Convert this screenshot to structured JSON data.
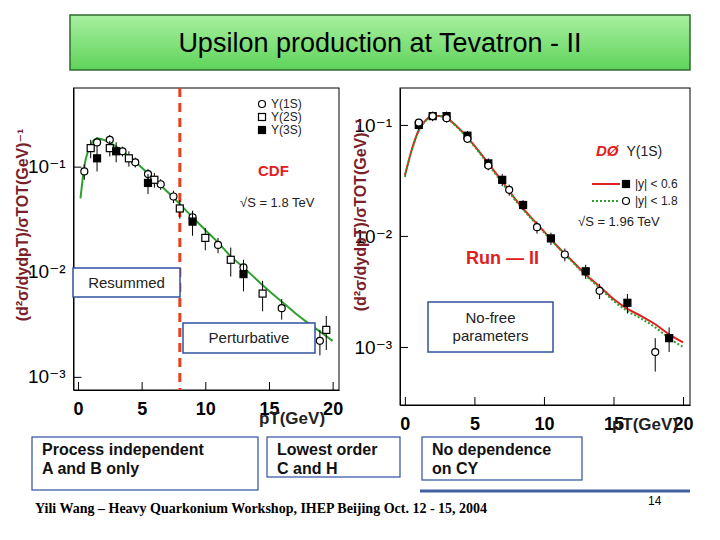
{
  "title": "Upsilon production at Tevatron - II",
  "chart_data": [
    {
      "type": "scatter",
      "log": "y",
      "xlabel": "pT(GeV)",
      "ylabel": "(d²σ/dydpT)/σTOT(GeV)⁻¹",
      "xlim": [
        -0.35,
        20.5
      ],
      "ylim": [
        0.00075,
        0.56
      ],
      "xticks": [
        0,
        5,
        10,
        15,
        20
      ],
      "yticks": [
        {
          "value": 0.001,
          "label": "10⁻³"
        },
        {
          "value": 0.01,
          "label": "10⁻²"
        },
        {
          "value": 0.1,
          "label": "10⁻¹"
        }
      ],
      "experiment_label": "CDF",
      "energy_label": "√S = 1.8 TeV",
      "separation_x": 8,
      "boxes": [
        [
          "Resummed"
        ],
        [
          "Perturbative"
        ]
      ],
      "curves": [
        {
          "color": "#2ca02c",
          "line_style": "solid",
          "x": [
            0.2,
            0.5,
            1,
            1.5,
            2,
            3,
            4,
            5,
            6,
            7,
            8,
            9,
            10,
            11,
            12,
            13,
            14,
            15,
            16,
            17,
            18,
            19,
            20
          ],
          "values": [
            0.05,
            0.1,
            0.16,
            0.185,
            0.18,
            0.155,
            0.125,
            0.098,
            0.075,
            0.058,
            0.044,
            0.033,
            0.025,
            0.019,
            0.014,
            0.011,
            0.0085,
            0.0066,
            0.0052,
            0.0041,
            0.0033,
            0.0027,
            0.0022
          ]
        }
      ],
      "series": [
        {
          "name": "Υ(1S)",
          "color": "#000000",
          "marker": "circle-open",
          "x": [
            0.5,
            1.5,
            2.5,
            3.5,
            4.5,
            5.5,
            6.5,
            7.5,
            9,
            11,
            13,
            16,
            19
          ],
          "values": [
            0.09,
            0.17,
            0.18,
            0.14,
            0.11,
            0.085,
            0.068,
            0.052,
            0.033,
            0.018,
            0.011,
            0.0045,
            0.0022
          ],
          "errors": [
            0.015,
            0.02,
            0.02,
            0.015,
            0.012,
            0.01,
            0.008,
            0.007,
            0.005,
            0.003,
            0.002,
            0.001,
            0.0006
          ]
        },
        {
          "name": "Υ(2S)",
          "color": "#000000",
          "marker": "square-open",
          "x": [
            1,
            2.5,
            4,
            6,
            8,
            10,
            12,
            14.5,
            19.5
          ],
          "values": [
            0.15,
            0.15,
            0.12,
            0.075,
            0.04,
            0.021,
            0.013,
            0.0062,
            0.0028
          ],
          "errors": [
            0.03,
            0.025,
            0.02,
            0.012,
            0.008,
            0.005,
            0.004,
            0.002,
            0.001
          ]
        },
        {
          "name": "Υ(3S)",
          "color": "#000000",
          "marker": "square-filled",
          "x": [
            1.5,
            3,
            5.5,
            9,
            13
          ],
          "values": [
            0.12,
            0.14,
            0.07,
            0.03,
            0.0095
          ],
          "errors": [
            0.03,
            0.03,
            0.015,
            0.008,
            0.003
          ]
        }
      ]
    },
    {
      "type": "scatter",
      "log": "y",
      "xlabel": "pT(GeV)",
      "ylabel": "(d²σ/dydpT)/σTOT(GeV)⁻¹",
      "xlim": [
        -0.35,
        20.5
      ],
      "ylim": [
        0.0003,
        0.215
      ],
      "xticks": [
        0,
        5,
        10,
        15,
        20
      ],
      "yticks": [
        {
          "value": 0.001,
          "label": "10⁻³"
        },
        {
          "value": 0.01,
          "label": "10⁻²"
        },
        {
          "value": 0.1,
          "label": "10⁻¹"
        }
      ],
      "experiment_label": "DØ",
      "legend_title": "Υ(1S)",
      "energy_label": "√S = 1.96 TeV",
      "run_label": "Run — II",
      "boxes": [
        [
          "No-free",
          "parameters"
        ]
      ],
      "curves": [],
      "series": [
        {
          "name": "|y| < 0.6",
          "color": "#000000",
          "marker": "square-filled",
          "x": [
            1,
            2,
            3,
            4.5,
            6,
            7,
            8.5,
            10.5,
            13,
            16,
            19
          ],
          "values": [
            0.1,
            0.12,
            0.12,
            0.08,
            0.045,
            0.032,
            0.019,
            0.0095,
            0.0048,
            0.0025,
            0.0012
          ],
          "errors": [
            0.01,
            0.012,
            0.012,
            0.008,
            0.005,
            0.004,
            0.002,
            0.0012,
            0.0007,
            0.0005,
            0.0003
          ],
          "curve": {
            "color": "#e02020",
            "line_style": "solid",
            "x": [
              0,
              0.5,
              1,
              1.5,
              2,
              2.5,
              3,
              4,
              5,
              6,
              7,
              8,
              9,
              10,
              11,
              12,
              13,
              14,
              15,
              16,
              17,
              18,
              19,
              20
            ],
            "values": [
              0.035,
              0.06,
              0.09,
              0.11,
              0.12,
              0.12,
              0.115,
              0.09,
              0.065,
              0.045,
              0.031,
              0.021,
              0.015,
              0.011,
              0.008,
              0.006,
              0.0045,
              0.0035,
              0.0027,
              0.0022,
              0.0019,
              0.0016,
              0.0013,
              0.0011
            ]
          }
        },
        {
          "name": "|y| < 1.8",
          "color": "#000000",
          "marker": "circle-open",
          "x": [
            1,
            2,
            3,
            4.5,
            6,
            7.5,
            9.5,
            11.5,
            14,
            18
          ],
          "values": [
            0.105,
            0.12,
            0.115,
            0.075,
            0.043,
            0.026,
            0.012,
            0.0068,
            0.0032,
            0.0009
          ],
          "errors": [
            0.008,
            0.01,
            0.01,
            0.006,
            0.004,
            0.003,
            0.0015,
            0.0009,
            0.0005,
            0.0003
          ],
          "curve": {
            "color": "#2ca02c",
            "line_style": "dotted",
            "x": [
              0,
              0.5,
              1,
              1.5,
              2,
              2.5,
              3,
              4,
              5,
              6,
              7,
              8,
              9,
              10,
              11,
              12,
              13,
              14,
              15,
              16,
              17,
              18,
              19,
              20
            ],
            "values": [
              0.034,
              0.059,
              0.089,
              0.109,
              0.119,
              0.12,
              0.114,
              0.089,
              0.064,
              0.044,
              0.03,
              0.0205,
              0.0147,
              0.0108,
              0.0079,
              0.0059,
              0.0044,
              0.0034,
              0.0026,
              0.0021,
              0.0018,
              0.0015,
              0.0012,
              0.001
            ]
          }
        }
      ]
    }
  ],
  "notes": [
    [
      "Process independent",
      "A and B only"
    ],
    [
      "Lowest order",
      "C and H"
    ],
    [
      "No dependence",
      "on CΥ"
    ]
  ],
  "footer": "Yili Wang – Heavy Quarkonium Workshop, IHEP Beijing  Oct. 12 - 15, 2004",
  "page_number": 14
}
